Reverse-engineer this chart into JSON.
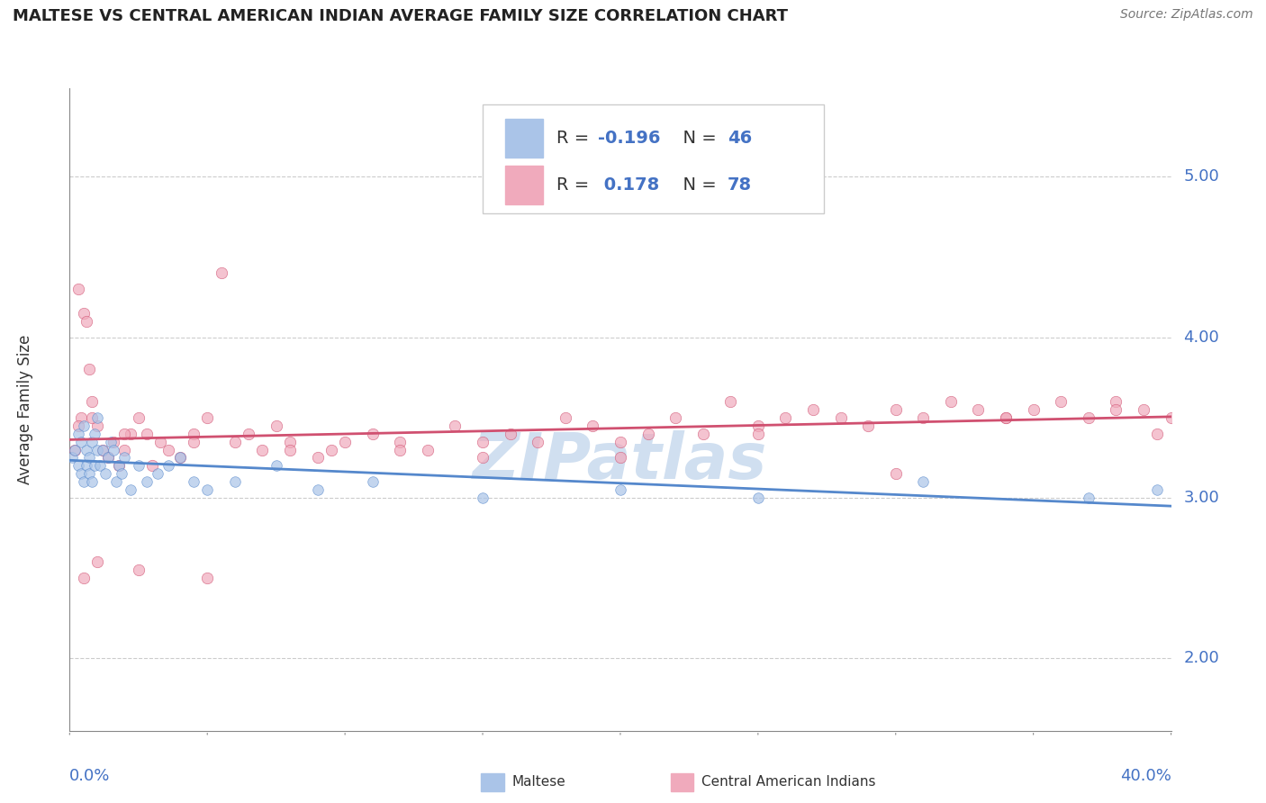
{
  "title": "MALTESE VS CENTRAL AMERICAN INDIAN AVERAGE FAMILY SIZE CORRELATION CHART",
  "source_text": "Source: ZipAtlas.com",
  "ylabel": "Average Family Size",
  "yticks": [
    2.0,
    3.0,
    4.0,
    5.0
  ],
  "xlim": [
    0.0,
    0.4
  ],
  "ylim": [
    1.55,
    5.55
  ],
  "maltese_scatter_color": "#aac4e8",
  "maltese_line_color": "#5588cc",
  "central_scatter_color": "#f0aabc",
  "central_line_color": "#d05070",
  "watermark_color": "#d0dff0",
  "background_color": "#ffffff",
  "grid_color": "#cccccc",
  "maltese_R": -0.196,
  "maltese_N": 46,
  "central_R": 0.178,
  "central_N": 78,
  "title_fontsize": 13,
  "axis_label_fontsize": 12,
  "tick_fontsize": 13,
  "legend_fontsize": 14,
  "maltese_x": [
    0.001,
    0.002,
    0.003,
    0.003,
    0.004,
    0.004,
    0.005,
    0.005,
    0.006,
    0.006,
    0.007,
    0.007,
    0.008,
    0.008,
    0.009,
    0.009,
    0.01,
    0.01,
    0.011,
    0.012,
    0.013,
    0.014,
    0.015,
    0.016,
    0.017,
    0.018,
    0.019,
    0.02,
    0.022,
    0.025,
    0.028,
    0.032,
    0.036,
    0.04,
    0.045,
    0.05,
    0.06,
    0.075,
    0.09,
    0.11,
    0.15,
    0.2,
    0.25,
    0.31,
    0.37,
    0.395
  ],
  "maltese_y": [
    3.25,
    3.3,
    3.4,
    3.2,
    3.35,
    3.15,
    3.45,
    3.1,
    3.3,
    3.2,
    3.25,
    3.15,
    3.35,
    3.1,
    3.4,
    3.2,
    3.3,
    3.5,
    3.2,
    3.3,
    3.15,
    3.25,
    3.35,
    3.3,
    3.1,
    3.2,
    3.15,
    3.25,
    3.05,
    3.2,
    3.1,
    3.15,
    3.2,
    3.25,
    3.1,
    3.05,
    3.1,
    3.2,
    3.05,
    3.1,
    3.0,
    3.05,
    3.0,
    3.1,
    3.0,
    3.05
  ],
  "central_x": [
    0.002,
    0.003,
    0.004,
    0.005,
    0.006,
    0.007,
    0.008,
    0.01,
    0.012,
    0.014,
    0.016,
    0.018,
    0.02,
    0.022,
    0.025,
    0.028,
    0.03,
    0.033,
    0.036,
    0.04,
    0.045,
    0.05,
    0.055,
    0.06,
    0.065,
    0.07,
    0.075,
    0.08,
    0.09,
    0.095,
    0.1,
    0.11,
    0.12,
    0.13,
    0.14,
    0.15,
    0.16,
    0.17,
    0.18,
    0.19,
    0.2,
    0.21,
    0.22,
    0.23,
    0.24,
    0.25,
    0.26,
    0.27,
    0.28,
    0.29,
    0.3,
    0.31,
    0.32,
    0.33,
    0.34,
    0.35,
    0.36,
    0.37,
    0.38,
    0.39,
    0.4,
    0.003,
    0.008,
    0.02,
    0.045,
    0.08,
    0.15,
    0.25,
    0.34,
    0.38,
    0.395,
    0.005,
    0.01,
    0.025,
    0.05,
    0.12,
    0.2,
    0.3
  ],
  "central_y": [
    3.3,
    4.3,
    3.5,
    4.15,
    4.1,
    3.8,
    3.6,
    3.45,
    3.3,
    3.25,
    3.35,
    3.2,
    3.3,
    3.4,
    3.5,
    3.4,
    3.2,
    3.35,
    3.3,
    3.25,
    3.4,
    3.5,
    4.4,
    3.35,
    3.4,
    3.3,
    3.45,
    3.35,
    3.25,
    3.3,
    3.35,
    3.4,
    3.35,
    3.3,
    3.45,
    3.35,
    3.4,
    3.35,
    3.5,
    3.45,
    3.35,
    3.4,
    3.5,
    3.4,
    3.6,
    3.45,
    3.5,
    3.55,
    3.5,
    3.45,
    3.55,
    3.5,
    3.6,
    3.55,
    3.5,
    3.55,
    3.6,
    3.5,
    3.6,
    3.55,
    3.5,
    3.45,
    3.5,
    3.4,
    3.35,
    3.3,
    3.25,
    3.4,
    3.5,
    3.55,
    3.4,
    2.5,
    2.6,
    2.55,
    2.5,
    3.3,
    3.25,
    3.15
  ]
}
